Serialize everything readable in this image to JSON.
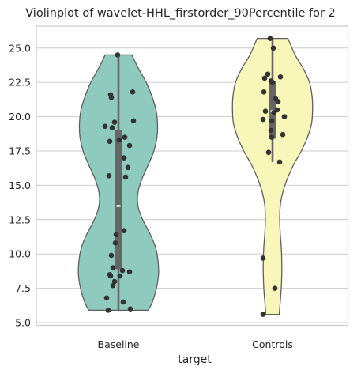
{
  "chart_data": {
    "type": "violin",
    "title": "Violinplot of wavelet-HHL_firstorder_90Percentile for 2",
    "xlabel": "target",
    "ylabel": "",
    "categories": [
      "Baseline",
      "Controls"
    ],
    "ylim": [
      4.8,
      26.6
    ],
    "yticks": [
      "5.0",
      "7.5",
      "10.0",
      "12.5",
      "15.0",
      "17.5",
      "20.0",
      "22.5",
      "25.0"
    ],
    "grid": true,
    "colors": {
      "Baseline": "#8ecbbe",
      "Controls": "#f8f6b8",
      "edge": "#5f5f5f",
      "box": "#666666",
      "points": "#333333"
    },
    "series": [
      {
        "category": "Baseline",
        "min": 5.9,
        "q1": 8.9,
        "median": 13.5,
        "q3": 19.0,
        "max": 24.5,
        "density": [
          [
            5.9,
            0.58
          ],
          [
            6.5,
            0.66
          ],
          [
            7.5,
            0.74
          ],
          [
            8.5,
            0.78
          ],
          [
            9.5,
            0.77
          ],
          [
            10.5,
            0.72
          ],
          [
            11.5,
            0.61
          ],
          [
            12.5,
            0.47
          ],
          [
            13.5,
            0.38
          ],
          [
            14.5,
            0.38
          ],
          [
            15.5,
            0.46
          ],
          [
            16.5,
            0.58
          ],
          [
            17.5,
            0.69
          ],
          [
            18.5,
            0.75
          ],
          [
            19.5,
            0.76
          ],
          [
            20.5,
            0.73
          ],
          [
            21.5,
            0.65
          ],
          [
            22.5,
            0.54
          ],
          [
            23.5,
            0.39
          ],
          [
            24.5,
            0.26
          ]
        ],
        "points": [
          [
            -0.01,
            24.5
          ],
          [
            -0.1,
            21.6
          ],
          [
            -0.09,
            21.4
          ],
          [
            0.18,
            21.8
          ],
          [
            0.19,
            19.7
          ],
          [
            -0.05,
            19.6
          ],
          [
            -0.17,
            19.3
          ],
          [
            -0.08,
            19.2
          ],
          [
            0.08,
            18.5
          ],
          [
            0.01,
            18.3
          ],
          [
            -0.11,
            18.2
          ],
          [
            0.14,
            17.9
          ],
          [
            0.07,
            17.0
          ],
          [
            0.12,
            16.3
          ],
          [
            0.09,
            15.6
          ],
          [
            -0.12,
            15.7
          ],
          [
            -0.03,
            11.4
          ],
          [
            0.07,
            11.7
          ],
          [
            -0.04,
            10.8
          ],
          [
            -0.09,
            9.9
          ],
          [
            -0.07,
            9.0
          ],
          [
            0.05,
            8.8
          ],
          [
            0.14,
            8.7
          ],
          [
            -0.11,
            8.5
          ],
          [
            -0.1,
            8.4
          ],
          [
            0.02,
            8.4
          ],
          [
            -0.07,
            7.7
          ],
          [
            -0.15,
            6.8
          ],
          [
            0.06,
            6.5
          ],
          [
            -0.13,
            5.9
          ],
          [
            0.15,
            6.0
          ],
          [
            -0.05,
            8.0
          ]
        ]
      },
      {
        "category": "Controls",
        "min": 16.7,
        "q1": 18.4,
        "median": 20.4,
        "q3": 22.6,
        "max": 25.7,
        "density": [
          [
            5.6,
            0.13
          ],
          [
            6.5,
            0.15
          ],
          [
            7.5,
            0.17
          ],
          [
            8.5,
            0.18
          ],
          [
            9.5,
            0.18
          ],
          [
            10.5,
            0.17
          ],
          [
            11.5,
            0.15
          ],
          [
            12.5,
            0.14
          ],
          [
            13.5,
            0.15
          ],
          [
            14.5,
            0.2
          ],
          [
            15.5,
            0.29
          ],
          [
            16.5,
            0.41
          ],
          [
            17.5,
            0.56
          ],
          [
            18.5,
            0.68
          ],
          [
            19.5,
            0.76
          ],
          [
            20.5,
            0.78
          ],
          [
            21.5,
            0.77
          ],
          [
            22.5,
            0.72
          ],
          [
            23.5,
            0.6
          ],
          [
            24.5,
            0.44
          ],
          [
            25.7,
            0.3
          ]
        ],
        "points": [
          [
            -0.03,
            25.7
          ],
          [
            0.01,
            25.0
          ],
          [
            -0.06,
            23.1
          ],
          [
            0.1,
            22.9
          ],
          [
            -0.1,
            22.8
          ],
          [
            -0.02,
            22.6
          ],
          [
            0.0,
            22.5
          ],
          [
            -0.11,
            21.8
          ],
          [
            0.04,
            21.3
          ],
          [
            0.07,
            21.1
          ],
          [
            0.06,
            20.5
          ],
          [
            -0.09,
            20.4
          ],
          [
            0.02,
            20.3
          ],
          [
            0.15,
            20.0
          ],
          [
            -0.12,
            19.8
          ],
          [
            -0.01,
            19.7
          ],
          [
            -0.02,
            19.0
          ],
          [
            0.13,
            18.7
          ],
          [
            -0.01,
            18.5
          ],
          [
            -0.05,
            17.4
          ],
          [
            0.09,
            16.7
          ],
          [
            -0.12,
            9.7
          ],
          [
            0.03,
            7.5
          ],
          [
            -0.12,
            5.6
          ]
        ]
      }
    ]
  }
}
